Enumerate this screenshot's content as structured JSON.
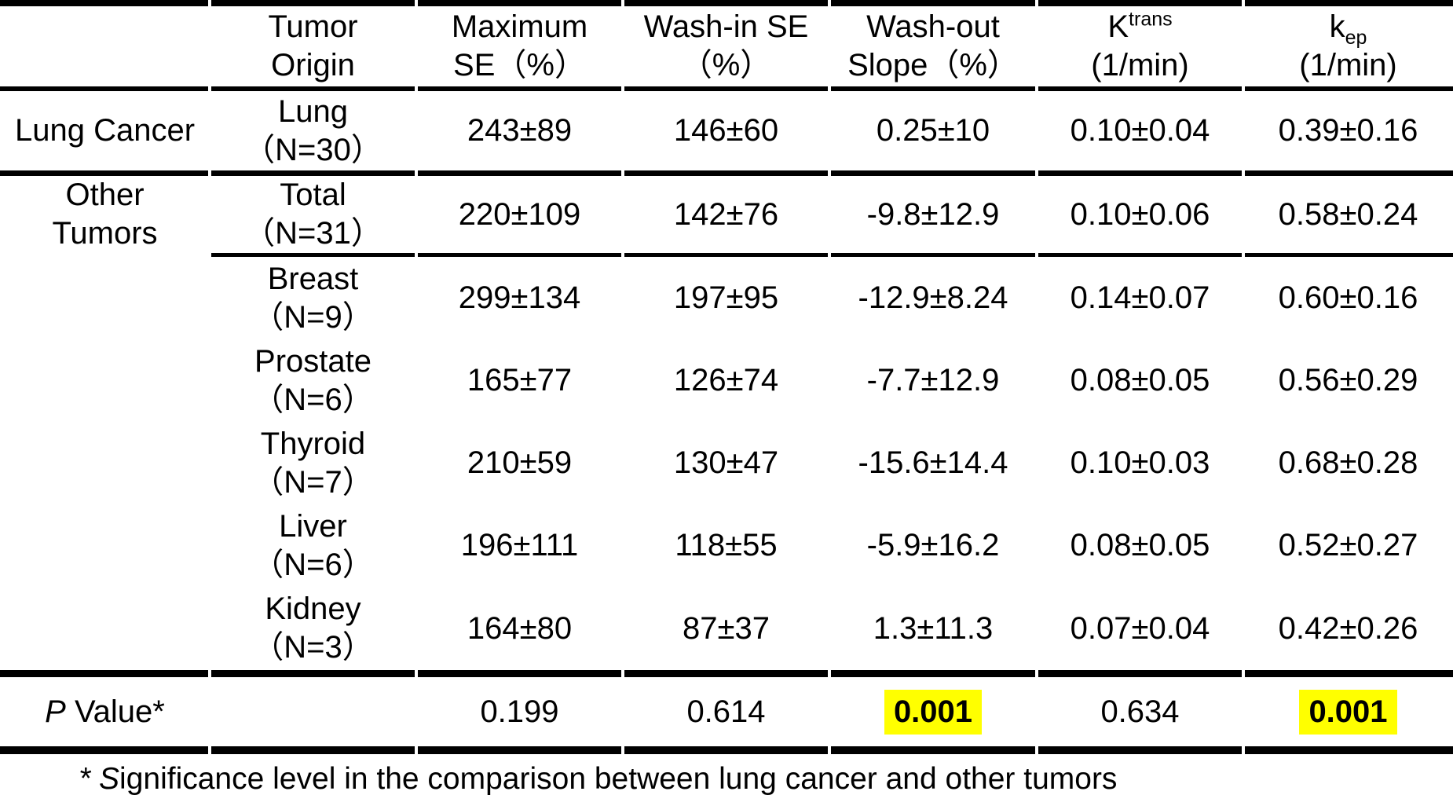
{
  "table": {
    "header": {
      "col_origin": {
        "line1": "Tumor",
        "line2": "Origin"
      },
      "col_max_se": {
        "line1": "Maximum",
        "line2": "SE（%）"
      },
      "col_washin": {
        "line1": "Wash-in SE",
        "line2": "（%）"
      },
      "col_washout": {
        "line1": "Wash-out",
        "line2": "Slope（%）"
      },
      "col_ktrans": {
        "base": "K",
        "sup": "trans",
        "line2": "(1/min)"
      },
      "col_kep": {
        "base": "k",
        "sub": "ep",
        "line2": "(1/min)"
      }
    },
    "rows": [
      {
        "group1": "Lung Cancer",
        "group2": "",
        "origin1": "Lung",
        "origin2": "（N=30）",
        "max_se": "243±89",
        "washin": "146±60",
        "washout": "0.25±10",
        "ktrans": "0.10±0.04",
        "kep": "0.39±0.16"
      },
      {
        "group1": "Other",
        "group2": "Tumors",
        "origin1": "Total",
        "origin2": "（N=31）",
        "max_se": "220±109",
        "washin": "142±76",
        "washout": "-9.8±12.9",
        "ktrans": "0.10±0.06",
        "kep": "0.58±0.24"
      },
      {
        "group1": "",
        "group2": "",
        "origin1": "Breast",
        "origin2": "（N=9）",
        "max_se": "299±134",
        "washin": "197±95",
        "washout": "-12.9±8.24",
        "ktrans": "0.14±0.07",
        "kep": "0.60±0.16"
      },
      {
        "group1": "",
        "group2": "",
        "origin1": "Prostate",
        "origin2": "（N=6）",
        "max_se": "165±77",
        "washin": "126±74",
        "washout": "-7.7±12.9",
        "ktrans": "0.08±0.05",
        "kep": "0.56±0.29"
      },
      {
        "group1": "",
        "group2": "",
        "origin1": "Thyroid",
        "origin2": "（N=7）",
        "max_se": "210±59",
        "washin": "130±47",
        "washout": "-15.6±14.4",
        "ktrans": "0.10±0.03",
        "kep": "0.68±0.28"
      },
      {
        "group1": "",
        "group2": "",
        "origin1": "Liver",
        "origin2": "（N=6）",
        "max_se": "196±111",
        "washin": "118±55",
        "washout": "-5.9±16.2",
        "ktrans": "0.08±0.05",
        "kep": "0.52±0.27"
      },
      {
        "group1": "",
        "group2": "",
        "origin1": "Kidney",
        "origin2": "（N=3）",
        "max_se": "164±80",
        "washin": "87±37",
        "washout": "1.3±11.3",
        "ktrans": "0.07±0.04",
        "kep": "0.42±0.26"
      }
    ],
    "pvalue": {
      "label_italic": "P",
      "label_rest": "Value*",
      "max_se": "0.199",
      "washin": "0.614",
      "washout": "0.001",
      "ktrans": "0.634",
      "kep": "0.001"
    },
    "footnote": {
      "lead_italic": "* S",
      "rest": "ignificance level in the comparison between lung cancer and other tumors"
    },
    "highlight_color": "#FFFF00",
    "text_color": "#000000",
    "background_color": "#FFFFFF"
  },
  "chart_data": {
    "type": "table",
    "columns": [
      "",
      "Tumor Origin",
      "Maximum SE（%）",
      "Wash-in SE（%）",
      "Wash-out Slope（%）",
      "Ktrans (1/min)",
      "kep (1/min)"
    ],
    "rows": [
      [
        "Lung Cancer",
        "Lung（N=30）",
        "243±89",
        "146±60",
        "0.25±10",
        "0.10±0.04",
        "0.39±0.16"
      ],
      [
        "Other Tumors",
        "Total（N=31）",
        "220±109",
        "142±76",
        "-9.8±12.9",
        "0.10±0.06",
        "0.58±0.24"
      ],
      [
        "",
        "Breast（N=9）",
        "299±134",
        "197±95",
        "-12.9±8.24",
        "0.14±0.07",
        "0.60±0.16"
      ],
      [
        "",
        "Prostate（N=6）",
        "165±77",
        "126±74",
        "-7.7±12.9",
        "0.08±0.05",
        "0.56±0.29"
      ],
      [
        "",
        "Thyroid（N=7）",
        "210±59",
        "130±47",
        "-15.6±14.4",
        "0.10±0.03",
        "0.68±0.28"
      ],
      [
        "",
        "Liver（N=6）",
        "196±111",
        "118±55",
        "-5.9±16.2",
        "0.08±0.05",
        "0.52±0.27"
      ],
      [
        "",
        "Kidney（N=3）",
        "164±80",
        "87±37",
        "1.3±11.3",
        "0.07±0.04",
        "0.42±0.26"
      ],
      [
        "P Value*",
        "",
        "0.199",
        "0.614",
        "0.001",
        "0.634",
        "0.001"
      ]
    ],
    "highlighted_cells": [
      [
        7,
        4
      ],
      [
        7,
        6
      ]
    ],
    "footnote": "* Significance level in the comparison between lung cancer and other tumors"
  }
}
